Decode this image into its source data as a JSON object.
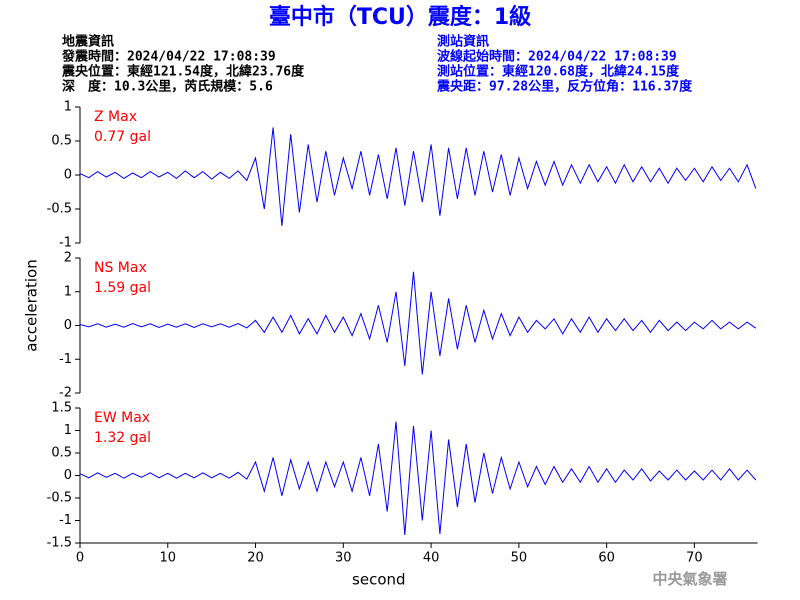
{
  "header": {
    "title": "臺中市（TCU）震度：1級",
    "left": [
      "地震資訊",
      "發震時間：2024/04/22 17:08:39",
      "震央位置：東經121.54度，北緯23.76度",
      "深　度：10.3公里，芮氏規模：5.6"
    ],
    "right": [
      "測站資訊",
      "波線起始時間：2024/04/22 17:08:39",
      "測站位置：東經120.68度，北緯24.15度",
      "震央距：97.28公里，反方位角：116.37度"
    ],
    "footer": "中央氣象署"
  },
  "chart_data": [
    {
      "type": "line",
      "label": "Z Max",
      "max_label": "0.77 gal",
      "color": "#0000ff",
      "xlim": [
        0,
        77.2
      ],
      "ylim": [
        -1,
        1
      ],
      "yticks": [
        -1,
        -0.5,
        0,
        0.5,
        1
      ],
      "x": [
        0,
        1,
        2,
        3,
        4,
        5,
        6,
        7,
        8,
        9,
        10,
        11,
        12,
        13,
        14,
        15,
        16,
        17,
        18,
        19,
        20,
        21,
        22,
        23,
        24,
        25,
        26,
        27,
        28,
        29,
        30,
        31,
        32,
        33,
        34,
        35,
        36,
        37,
        38,
        39,
        40,
        41,
        42,
        43,
        44,
        45,
        46,
        47,
        48,
        49,
        50,
        51,
        52,
        53,
        54,
        55,
        56,
        57,
        58,
        59,
        60,
        61,
        62,
        63,
        64,
        65,
        66,
        67,
        68,
        69,
        70,
        71,
        72,
        73,
        74,
        75,
        76,
        77
      ],
      "values": [
        0.02,
        -0.04,
        0.05,
        -0.03,
        0.04,
        -0.05,
        0.03,
        -0.04,
        0.05,
        -0.03,
        0.04,
        -0.05,
        0.06,
        -0.04,
        0.05,
        -0.06,
        0.04,
        -0.05,
        0.06,
        -0.08,
        0.25,
        -0.5,
        0.7,
        -0.75,
        0.6,
        -0.55,
        0.45,
        -0.4,
        0.35,
        -0.3,
        0.25,
        -0.2,
        0.35,
        -0.3,
        0.3,
        -0.35,
        0.4,
        -0.45,
        0.35,
        -0.4,
        0.45,
        -0.6,
        0.4,
        -0.35,
        0.4,
        -0.3,
        0.35,
        -0.25,
        0.3,
        -0.3,
        0.25,
        -0.2,
        0.2,
        -0.15,
        0.2,
        -0.15,
        0.15,
        -0.12,
        0.15,
        -0.1,
        0.12,
        -0.12,
        0.15,
        -0.1,
        0.12,
        -0.1,
        0.1,
        -0.12,
        0.1,
        -0.08,
        0.1,
        -0.1,
        0.12,
        -0.08,
        0.1,
        -0.1,
        0.15,
        -0.2
      ]
    },
    {
      "type": "line",
      "label": "NS Max",
      "max_label": "1.59 gal",
      "color": "#0000ff",
      "ylabel": "acceleration",
      "xlim": [
        0,
        77.2
      ],
      "ylim": [
        -2,
        2
      ],
      "yticks": [
        -2,
        -1,
        0,
        1,
        2
      ],
      "x": [
        0,
        1,
        2,
        3,
        4,
        5,
        6,
        7,
        8,
        9,
        10,
        11,
        12,
        13,
        14,
        15,
        16,
        17,
        18,
        19,
        20,
        21,
        22,
        23,
        24,
        25,
        26,
        27,
        28,
        29,
        30,
        31,
        32,
        33,
        34,
        35,
        36,
        37,
        38,
        39,
        40,
        41,
        42,
        43,
        44,
        45,
        46,
        47,
        48,
        49,
        50,
        51,
        52,
        53,
        54,
        55,
        56,
        57,
        58,
        59,
        60,
        61,
        62,
        63,
        64,
        65,
        66,
        67,
        68,
        69,
        70,
        71,
        72,
        73,
        74,
        75,
        76,
        77
      ],
      "values": [
        0.03,
        -0.04,
        0.05,
        -0.05,
        0.04,
        -0.05,
        0.06,
        -0.04,
        0.05,
        -0.06,
        0.04,
        -0.05,
        0.05,
        -0.06,
        0.05,
        -0.04,
        0.05,
        -0.05,
        0.06,
        -0.07,
        0.15,
        -0.2,
        0.25,
        -0.2,
        0.3,
        -0.25,
        0.2,
        -0.25,
        0.3,
        -0.2,
        0.25,
        -0.3,
        0.35,
        -0.4,
        0.6,
        -0.5,
        1.0,
        -1.2,
        1.59,
        -1.45,
        1.0,
        -0.9,
        0.8,
        -0.7,
        0.6,
        -0.5,
        0.45,
        -0.4,
        0.35,
        -0.3,
        0.25,
        -0.2,
        0.15,
        -0.1,
        0.2,
        -0.25,
        0.2,
        -0.2,
        0.25,
        -0.2,
        0.2,
        -0.15,
        0.2,
        -0.15,
        0.15,
        -0.2,
        0.15,
        -0.15,
        0.1,
        -0.15,
        0.1,
        -0.1,
        0.15,
        -0.1,
        0.1,
        -0.1,
        0.1,
        -0.08
      ]
    },
    {
      "type": "line",
      "label": "EW Max",
      "max_label": "1.32 gal",
      "color": "#0000ff",
      "xlabel": "second",
      "xlim": [
        0,
        77.2
      ],
      "ylim": [
        -1.5,
        1.5
      ],
      "yticks": [
        -1.5,
        -1,
        -0.5,
        0,
        0.5,
        1,
        1.5
      ],
      "xticks": [
        0,
        10,
        20,
        30,
        40,
        50,
        60,
        70
      ],
      "x": [
        0,
        1,
        2,
        3,
        4,
        5,
        6,
        7,
        8,
        9,
        10,
        11,
        12,
        13,
        14,
        15,
        16,
        17,
        18,
        19,
        20,
        21,
        22,
        23,
        24,
        25,
        26,
        27,
        28,
        29,
        30,
        31,
        32,
        33,
        34,
        35,
        36,
        37,
        38,
        39,
        40,
        41,
        42,
        43,
        44,
        45,
        46,
        47,
        48,
        49,
        50,
        51,
        52,
        53,
        54,
        55,
        56,
        57,
        58,
        59,
        60,
        61,
        62,
        63,
        64,
        65,
        66,
        67,
        68,
        69,
        70,
        71,
        72,
        73,
        74,
        75,
        76,
        77
      ],
      "values": [
        0.04,
        -0.05,
        0.06,
        -0.04,
        0.05,
        -0.06,
        0.05,
        -0.04,
        0.06,
        -0.05,
        0.05,
        -0.06,
        0.05,
        -0.05,
        0.06,
        -0.05,
        0.05,
        -0.06,
        0.07,
        -0.08,
        0.3,
        -0.35,
        0.4,
        -0.45,
        0.35,
        -0.3,
        0.3,
        -0.35,
        0.3,
        -0.25,
        0.3,
        -0.35,
        0.4,
        -0.45,
        0.7,
        -0.8,
        1.2,
        -1.32,
        1.1,
        -1.0,
        1.0,
        -1.3,
        0.8,
        -0.7,
        0.7,
        -0.6,
        0.5,
        -0.4,
        0.4,
        -0.3,
        0.3,
        -0.25,
        0.2,
        -0.2,
        0.2,
        -0.15,
        0.15,
        -0.15,
        0.2,
        -0.15,
        0.15,
        -0.15,
        0.12,
        -0.1,
        0.15,
        -0.12,
        0.1,
        -0.1,
        0.12,
        -0.1,
        0.1,
        -0.1,
        0.12,
        -0.1,
        0.15,
        -0.1,
        0.12,
        -0.1
      ]
    }
  ]
}
